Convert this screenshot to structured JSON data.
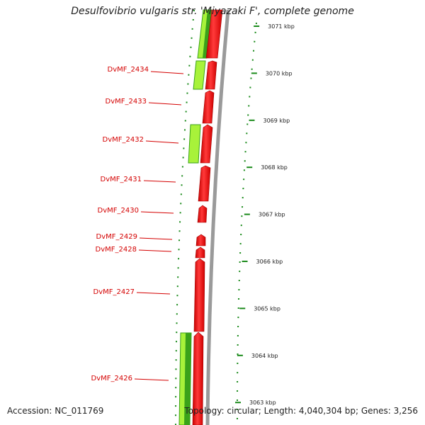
{
  "title": "Desulfovibrio vulgaris str. 'Miyazaki F', complete genome",
  "footer": {
    "accession": "Accession: NC_011769",
    "summary": "Topology: circular; Length: 4,040,304 bp; Genes: 3,256"
  },
  "colors": {
    "reverse_strand": "#ff0000",
    "forward_strand_light": "#a8f23a",
    "forward_strand_dark": "#3aa21a",
    "backbone": "#9a9a9a",
    "ticks": "#1a8a1a",
    "label": "#d40000"
  },
  "ruler": {
    "unit": "kbp",
    "ticks": [
      3071,
      3070,
      3069,
      3068,
      3067,
      3066,
      3065,
      3064,
      3063
    ]
  },
  "genes": [
    {
      "locus": "DvMF_2434"
    },
    {
      "locus": "DvMF_2433"
    },
    {
      "locus": "DvMF_2432"
    },
    {
      "locus": "DvMF_2431"
    },
    {
      "locus": "DvMF_2430"
    },
    {
      "locus": "DvMF_2429"
    },
    {
      "locus": "DvMF_2428"
    },
    {
      "locus": "DvMF_2427"
    },
    {
      "locus": "DvMF_2426"
    }
  ]
}
